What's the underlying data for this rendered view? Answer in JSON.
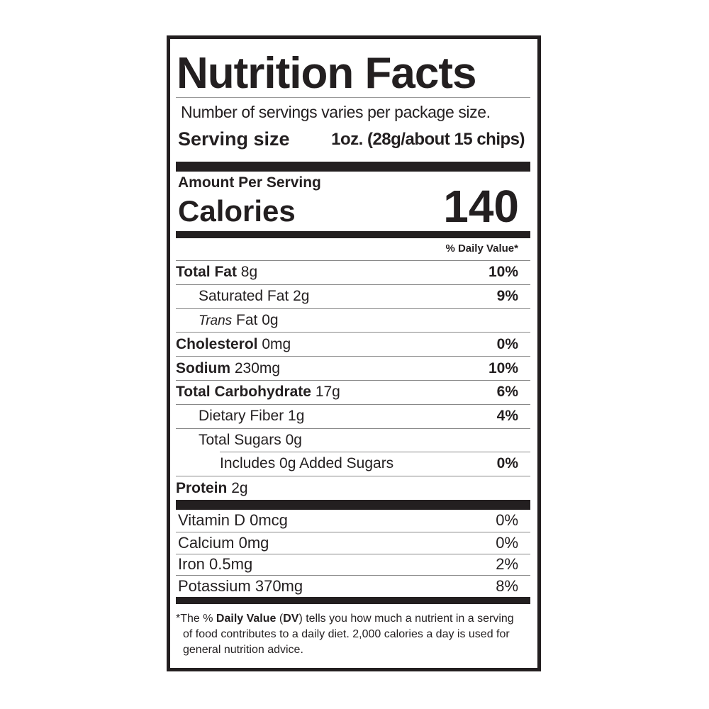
{
  "title": "Nutrition Facts",
  "servings": "Number of servings varies per package size.",
  "serving_size": {
    "label": "Serving size",
    "value": "1oz. (28g/about 15 chips)"
  },
  "amount_per_serving": "Amount Per Serving",
  "calories": {
    "label": "Calories",
    "value": 140
  },
  "daily_value_header": "% Daily Value*",
  "nutrients": [
    {
      "name": "Total Fat",
      "amount": "8g",
      "dv": "10%",
      "children": [
        {
          "name": "Saturated Fat",
          "amount": "2g",
          "dv": "9%"
        },
        {
          "name_italic": "Trans",
          "name": "Fat",
          "amount": "0g"
        }
      ]
    },
    {
      "name": "Cholesterol",
      "amount": "0mg",
      "dv": "0%"
    },
    {
      "name": "Sodium",
      "amount": "230mg",
      "dv": "10%"
    },
    {
      "name": "Total Carbohydrate",
      "amount": "17g",
      "dv": "6%",
      "children": [
        {
          "name": "Dietary Fiber",
          "amount": "1g",
          "dv": "4%"
        },
        {
          "name": "Total Sugars",
          "amount": "0g",
          "children": [
            {
              "name": "Includes 0g Added Sugars",
              "dv": "0%"
            }
          ]
        }
      ]
    },
    {
      "name": "Protein",
      "amount": "2g"
    }
  ],
  "vitamins": [
    {
      "name": "Vitamin D",
      "amount": "0mcg",
      "dv": "0%"
    },
    {
      "name": "Calcium",
      "amount": "0mg",
      "dv": "0%"
    },
    {
      "name": "Iron",
      "amount": "0.5mg",
      "dv": "2%"
    },
    {
      "name": "Potassium",
      "amount": "370mg",
      "dv": "8%"
    }
  ],
  "footnote": [
    {
      "text": "*",
      "bold": false
    },
    {
      "text": "The % ",
      "bold": false
    },
    {
      "text": "Daily Value",
      "bold": true
    },
    {
      "text": " (",
      "bold": false
    },
    {
      "text": "DV",
      "bold": true
    },
    {
      "text": ") tells you how much a nutrient in a serving of food contributes to a daily diet. 2,000 calories a day is used for general nutrition advice.",
      "bold": false
    }
  ]
}
